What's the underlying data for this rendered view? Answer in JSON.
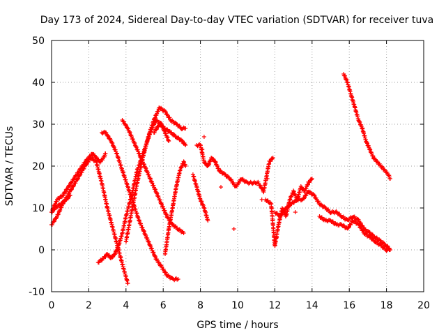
{
  "chart_data": {
    "type": "scatter",
    "title": "Day 173 of 2024, Sidereal Day-to-day VTEC variation (SDTVAR) for receiver tuva",
    "xlabel": "GPS time / hours",
    "ylabel": "SDTVAR / TECUs",
    "xlim": [
      0,
      20
    ],
    "ylim": [
      -10,
      50
    ],
    "x_ticks": [
      0,
      2,
      4,
      6,
      8,
      10,
      12,
      14,
      16,
      18,
      20
    ],
    "y_ticks": [
      -10,
      0,
      10,
      20,
      30,
      40,
      50
    ],
    "x_tick_labels": [
      "0",
      "2",
      "4",
      "6",
      "8",
      "10",
      "12",
      "14",
      "16",
      "18",
      "20"
    ],
    "y_tick_labels": [
      "-10",
      "0",
      "10",
      "20",
      "30",
      "40",
      "50"
    ],
    "grid": true,
    "marker": "+",
    "color": "#ff0000",
    "series": [
      {
        "name": "arc-1",
        "x": [
          0.0,
          0.3,
          0.6,
          1.0,
          1.4,
          1.8,
          2.1,
          2.4,
          2.7,
          3.0,
          3.3,
          3.6,
          3.9,
          4.1
        ],
        "y": [
          6,
          8,
          11,
          14,
          17,
          20,
          22,
          21,
          16,
          10,
          5,
          0,
          -5,
          -8
        ]
      },
      {
        "name": "arc-2",
        "x": [
          0.0,
          0.3,
          0.6,
          0.9,
          1.2,
          1.5,
          1.8,
          2.0,
          2.2,
          2.4,
          2.6,
          2.8,
          2.9
        ],
        "y": [
          9,
          12,
          13,
          15,
          17,
          19,
          21,
          22,
          23,
          22,
          21,
          22,
          23
        ]
      },
      {
        "name": "arc-3",
        "x": [
          0.0,
          0.2,
          0.5,
          0.8,
          1.0
        ],
        "y": [
          9,
          10,
          11,
          12,
          13
        ]
      },
      {
        "name": "arc-4",
        "x": [
          2.5,
          2.8,
          3.0,
          3.2,
          3.4,
          3.6,
          3.8,
          4.0,
          4.3,
          4.6,
          5.0,
          5.3,
          5.6,
          5.9,
          6.1,
          6.3
        ],
        "y": [
          -3,
          -2,
          -1,
          -2,
          -1,
          1,
          4,
          8,
          13,
          19,
          24,
          28,
          31,
          30,
          28,
          26
        ]
      },
      {
        "name": "arc-5",
        "x": [
          2.7,
          2.9,
          3.2,
          3.5,
          3.8,
          4.1,
          4.4,
          4.7,
          5.0,
          5.3,
          5.6,
          5.9,
          6.2,
          6.5,
          6.8
        ],
        "y": [
          28,
          28,
          26,
          23,
          19,
          15,
          11,
          7,
          4,
          1,
          -2,
          -4,
          -6,
          -7,
          -7
        ]
      },
      {
        "name": "arc-6",
        "x": [
          3.8,
          4.1,
          4.4,
          4.7,
          5.0,
          5.3,
          5.6,
          5.9,
          6.2,
          6.5,
          6.8,
          7.1
        ],
        "y": [
          31,
          29,
          26,
          23,
          20,
          17,
          14,
          11,
          8,
          6,
          5,
          4
        ]
      },
      {
        "name": "arc-7",
        "x": [
          4.0,
          4.3,
          4.6,
          4.9,
          5.2,
          5.5,
          5.8,
          6.1,
          6.4,
          6.7,
          7.0,
          7.2
        ],
        "y": [
          2,
          9,
          16,
          22,
          27,
          31,
          34,
          33,
          31,
          30,
          29,
          29
        ]
      },
      {
        "name": "arc-8",
        "x": [
          5.5,
          5.8,
          6.1,
          6.4,
          6.7,
          7.0,
          7.2
        ],
        "y": [
          28,
          30,
          29,
          28,
          27,
          26,
          25
        ]
      },
      {
        "name": "arc-9",
        "x": [
          6.1,
          6.3,
          6.5,
          6.7,
          6.9,
          7.1,
          7.2
        ],
        "y": [
          -1,
          5,
          10,
          15,
          19,
          21,
          20
        ]
      },
      {
        "name": "arc-10",
        "x": [
          7.8,
          8.0,
          8.2,
          8.4,
          8.6,
          8.8,
          9.0,
          9.3,
          9.6,
          9.9,
          10.2,
          10.5,
          10.8,
          11.1,
          11.4,
          11.7,
          11.9
        ],
        "y": [
          25,
          25,
          21,
          20,
          22,
          21,
          19,
          18,
          17,
          15,
          17,
          16,
          16,
          16,
          14,
          21,
          22
        ]
      },
      {
        "name": "arc-11",
        "x": [
          7.6,
          7.8,
          8.0,
          8.2,
          8.4
        ],
        "y": [
          18,
          15,
          12,
          10,
          7
        ]
      },
      {
        "name": "arc-12",
        "x": [
          11.5,
          11.8,
          12.0,
          12.2,
          12.4,
          12.6,
          12.8,
          13.0,
          13.2,
          13.4,
          13.6,
          13.8,
          14.0
        ],
        "y": [
          12,
          11,
          1,
          6,
          10,
          8,
          12,
          14,
          12,
          15,
          14,
          16,
          17
        ]
      },
      {
        "name": "arc-13",
        "x": [
          12.0,
          12.3,
          12.6,
          12.9,
          13.2,
          13.5,
          13.8,
          14.1,
          14.4,
          14.7,
          15.0,
          15.3,
          15.6,
          15.9,
          16.2,
          16.5,
          16.8,
          17.1,
          17.4,
          17.7,
          18.0,
          18.2
        ],
        "y": [
          9,
          8,
          10,
          11,
          12,
          12,
          14,
          13,
          11,
          10,
          9,
          9,
          8,
          7,
          8,
          7,
          5,
          4,
          3,
          2,
          1,
          0
        ]
      },
      {
        "name": "arc-14",
        "x": [
          14.4,
          14.7,
          15.0,
          15.3,
          15.6,
          15.9,
          16.2,
          16.5,
          16.8,
          17.1,
          17.4,
          17.7,
          18.0,
          18.2
        ],
        "y": [
          8,
          7,
          7,
          6,
          6,
          5,
          7,
          6,
          4,
          3,
          2,
          1,
          0,
          0
        ]
      },
      {
        "name": "arc-15",
        "x": [
          15.7,
          15.9,
          16.1,
          16.3,
          16.5,
          16.7,
          16.9,
          17.1,
          17.3,
          17.5,
          17.7,
          17.9,
          18.1,
          18.2
        ],
        "y": [
          42,
          40,
          37,
          34,
          31,
          29,
          26,
          24,
          22,
          21,
          20,
          19,
          18,
          17
        ]
      },
      {
        "name": "scatter-outliers",
        "x": [
          8.1,
          8.2,
          9.1,
          9.8,
          11.3,
          11.6,
          12.1,
          13.1
        ],
        "y": [
          24,
          27,
          15,
          5,
          12,
          17,
          3,
          9
        ]
      }
    ]
  }
}
